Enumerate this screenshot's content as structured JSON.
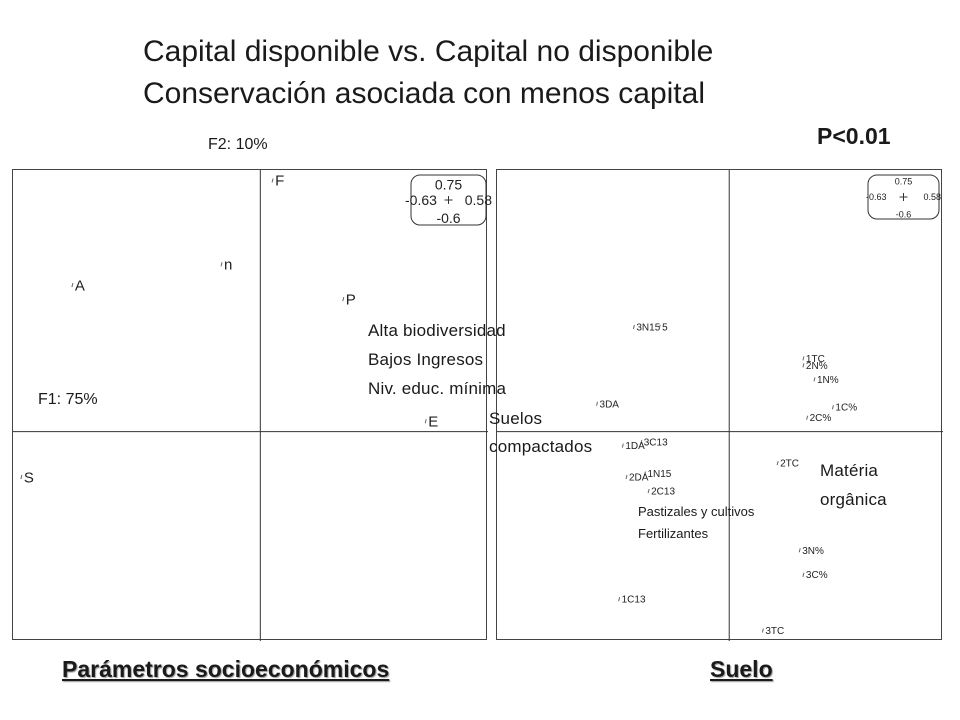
{
  "title": {
    "line1": "Capital disponible vs. Capital no disponible",
    "line2": "Conservación asociada con menos capital"
  },
  "p_value": "P<0.01",
  "axes": {
    "f2_label": "F2: 10%",
    "f1_label": "F1: 75%"
  },
  "left_panel": {
    "annotation_lines": [
      "Alta biodiversidad",
      "Bajos Ingresos",
      "Niv. educ. mínima"
    ],
    "footer": "Parámetros socioeconómicos"
  },
  "right_panel": {
    "annotation_1": [
      "Suelos",
      "compactados"
    ],
    "annotation_2": [
      "Matéria",
      "orgânica"
    ],
    "annotation_3": [
      "Pastizales y cultivos",
      "Fertilizantes"
    ],
    "footer": "Suelo"
  },
  "scale_box": {
    "top": "0.75",
    "left": "-0.63",
    "right": "0.58",
    "bottom": "-0.6"
  },
  "chart_data": [
    {
      "type": "scatter",
      "title": "Parámetros socioeconómicos",
      "xlabel": "F1: 75%",
      "ylabel": "F2: 10%",
      "xlim": [
        -0.63,
        0.58
      ],
      "ylim": [
        -0.6,
        0.75
      ],
      "points": [
        {
          "label": "F",
          "x": 0.03,
          "y": 0.72
        },
        {
          "label": "n",
          "x": -0.1,
          "y": 0.48
        },
        {
          "label": "A",
          "x": -0.48,
          "y": 0.42
        },
        {
          "label": "P",
          "x": 0.21,
          "y": 0.38
        },
        {
          "label": "E",
          "x": 0.42,
          "y": 0.03
        },
        {
          "label": "S",
          "x": -0.61,
          "y": -0.13
        }
      ]
    },
    {
      "type": "scatter",
      "title": "Suelo",
      "xlabel": "F1: 75%",
      "ylabel": "F2: 10%",
      "xlim": [
        -0.63,
        0.58
      ],
      "ylim": [
        -0.6,
        0.75
      ],
      "points": [
        {
          "label": "3N15",
          "x": -0.26,
          "y": 0.3
        },
        {
          "label": "5",
          "x": -0.19,
          "y": 0.3
        },
        {
          "label": "1TC",
          "x": 0.2,
          "y": 0.21
        },
        {
          "label": "2N%",
          "x": 0.2,
          "y": 0.19
        },
        {
          "label": "1N%",
          "x": 0.23,
          "y": 0.15
        },
        {
          "label": "3DA",
          "x": -0.36,
          "y": 0.08
        },
        {
          "label": "1C%",
          "x": 0.28,
          "y": 0.07
        },
        {
          "label": "2C%",
          "x": 0.21,
          "y": 0.04
        },
        {
          "label": "3C13",
          "x": -0.24,
          "y": -0.03
        },
        {
          "label": "1DA",
          "x": -0.29,
          "y": -0.04
        },
        {
          "label": "2TC",
          "x": 0.13,
          "y": -0.09
        },
        {
          "label": "1N15",
          "x": -0.23,
          "y": -0.12
        },
        {
          "label": "2DA",
          "x": -0.28,
          "y": -0.13
        },
        {
          "label": "2C13",
          "x": -0.22,
          "y": -0.17
        },
        {
          "label": "3N%",
          "x": 0.19,
          "y": -0.34
        },
        {
          "label": "3C%",
          "x": 0.2,
          "y": -0.41
        },
        {
          "label": "1C13",
          "x": -0.3,
          "y": -0.48
        },
        {
          "label": "3TC",
          "x": 0.09,
          "y": -0.57
        }
      ]
    }
  ]
}
